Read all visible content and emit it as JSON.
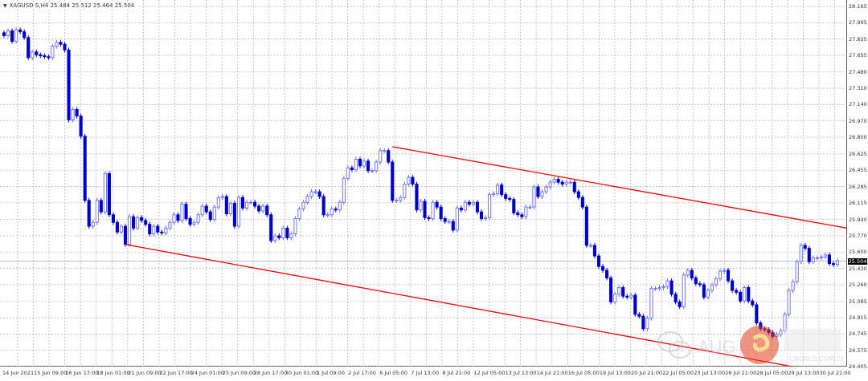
{
  "window": {
    "symbol_line": "XAGUSD-S,H4  25.484 25.512 25.464 25.504",
    "menu_icon": "triangle-down-icon"
  },
  "colors": {
    "bull_candle": "#6b6bff",
    "bear_candle": "#0000cc",
    "trendline": "#ff0000",
    "grid": "#a9b0bc",
    "price_line": "#9aa4b0",
    "current_price_bg": "#000000"
  },
  "chart_data": {
    "type": "candlestick",
    "symbol": "XAGUSD-S",
    "timeframe": "H4",
    "grid": true,
    "ylim": [
      24.405,
      28.165
    ],
    "price_ticks": [
      "28.165",
      "27.995",
      "27.825",
      "27.655",
      "27.480",
      "27.310",
      "27.140",
      "26.970",
      "26.800",
      "26.625",
      "26.455",
      "26.285",
      "26.115",
      "25.940",
      "25.770",
      "25.600",
      "25.430",
      "25.260",
      "25.085",
      "24.915",
      "24.745",
      "24.575",
      "24.405"
    ],
    "time_ticks": [
      "14 Jun 2021",
      "15 Jun 09:00",
      "16 Jun 17:00",
      "18 Jun 01:00",
      "21 Jun 09:00",
      "22 Jun 17:00",
      "24 Jun 01:00",
      "25 Jun 09:00",
      "28 Jun 17:00",
      "30 Jun 01:00",
      "1 Jul 09:00",
      "2 Jul 17:00",
      "6 Jul 05:00",
      "7 Jul 13:00",
      "8 Jul 21:00",
      "12 Jul 05:00",
      "13 Jul 13:00",
      "14 Jul 21:00",
      "16 Jul 05:00",
      "19 Jul 13:00",
      "20 Jul 21:00",
      "22 Jul 05:00",
      "23 Jul 13:00",
      "26 Jul 21:00",
      "28 Jul 05:00",
      "29 Jul 13:00",
      "30 Jul 21:00"
    ],
    "current_price": "25.504",
    "ohlc_last": {
      "open": 25.484,
      "high": 25.512,
      "low": 25.464,
      "close": 25.504
    },
    "close": [
      27.86,
      27.91,
      27.8,
      27.92,
      27.9,
      27.84,
      27.63,
      27.69,
      27.66,
      27.65,
      27.64,
      27.63,
      27.75,
      27.79,
      27.77,
      27.71,
      26.98,
      27.09,
      27.02,
      26.81,
      26.14,
      25.87,
      25.91,
      26.14,
      26.02,
      26.42,
      25.99,
      25.91,
      25.81,
      25.87,
      25.68,
      25.97,
      25.85,
      25.96,
      25.93,
      25.89,
      25.79,
      25.87,
      25.81,
      25.8,
      25.85,
      25.91,
      25.99,
      25.93,
      26.1,
      25.95,
      25.89,
      25.91,
      25.99,
      26.08,
      26.02,
      25.94,
      26.07,
      26.17,
      26.18,
      26.0,
      26.11,
      25.87,
      26.17,
      26.06,
      26.12,
      26.12,
      26.08,
      26.03,
      26.08,
      25.99,
      25.72,
      25.77,
      25.75,
      25.85,
      25.75,
      25.79,
      25.95,
      26.05,
      26.12,
      26.18,
      26.23,
      26.23,
      26.18,
      25.99,
      25.99,
      26.05,
      26.04,
      26.12,
      26.37,
      26.48,
      26.46,
      26.57,
      26.5,
      26.55,
      26.45,
      26.45,
      26.54,
      26.66,
      26.66,
      26.54,
      26.14,
      26.14,
      26.17,
      26.31,
      26.38,
      26.31,
      26.04,
      26.13,
      25.96,
      25.95,
      26.12,
      26.07,
      25.95,
      25.92,
      25.92,
      25.83,
      26.06,
      26.04,
      26.12,
      26.1,
      26.12,
      26.02,
      25.95,
      25.96,
      26.2,
      26.21,
      26.3,
      26.2,
      26.16,
      26.15,
      26.01,
      25.99,
      25.97,
      26.07,
      26.07,
      26.28,
      26.18,
      26.23,
      26.28,
      26.33,
      26.36,
      26.33,
      26.31,
      26.33,
      26.33,
      26.23,
      26.17,
      26.07,
      25.67,
      25.67,
      25.56,
      25.45,
      25.41,
      25.33,
      25.08,
      25.16,
      25.23,
      25.14,
      25.13,
      25.15,
      24.95,
      24.93,
      24.8,
      24.91,
      25.22,
      25.22,
      25.23,
      25.24,
      25.3,
      25.16,
      25.08,
      25.03,
      25.36,
      25.41,
      25.33,
      25.27,
      25.26,
      25.13,
      25.2,
      25.26,
      25.32,
      25.4,
      25.41,
      25.3,
      25.2,
      25.18,
      25.09,
      25.23,
      25.09,
      25.05,
      24.86,
      24.8,
      24.79,
      24.76,
      24.72,
      24.74,
      24.78,
      24.95,
      25.2,
      25.29,
      25.5,
      25.67,
      25.64,
      25.5,
      25.54,
      25.54,
      25.55,
      25.57,
      25.48,
      25.47,
      25.51
    ],
    "trendlines": [
      {
        "label": "upper",
        "start_bar": 96,
        "start_price": 26.7,
        "end_price_at_right_edge": 25.85
      },
      {
        "label": "lower",
        "start_bar": 30,
        "start_price": 25.68,
        "end_price_at_right_edge": 24.3
      }
    ]
  },
  "watermark": {
    "brand_latin": "AUG",
    "brand_cn": "财金网",
    "domain": "CNGOLD.COM.CN",
    "slogan_cn": "中 文 财 经 新 媒 体",
    "icons": [
      "wechat-icon",
      "cngold-logo-icon"
    ]
  }
}
